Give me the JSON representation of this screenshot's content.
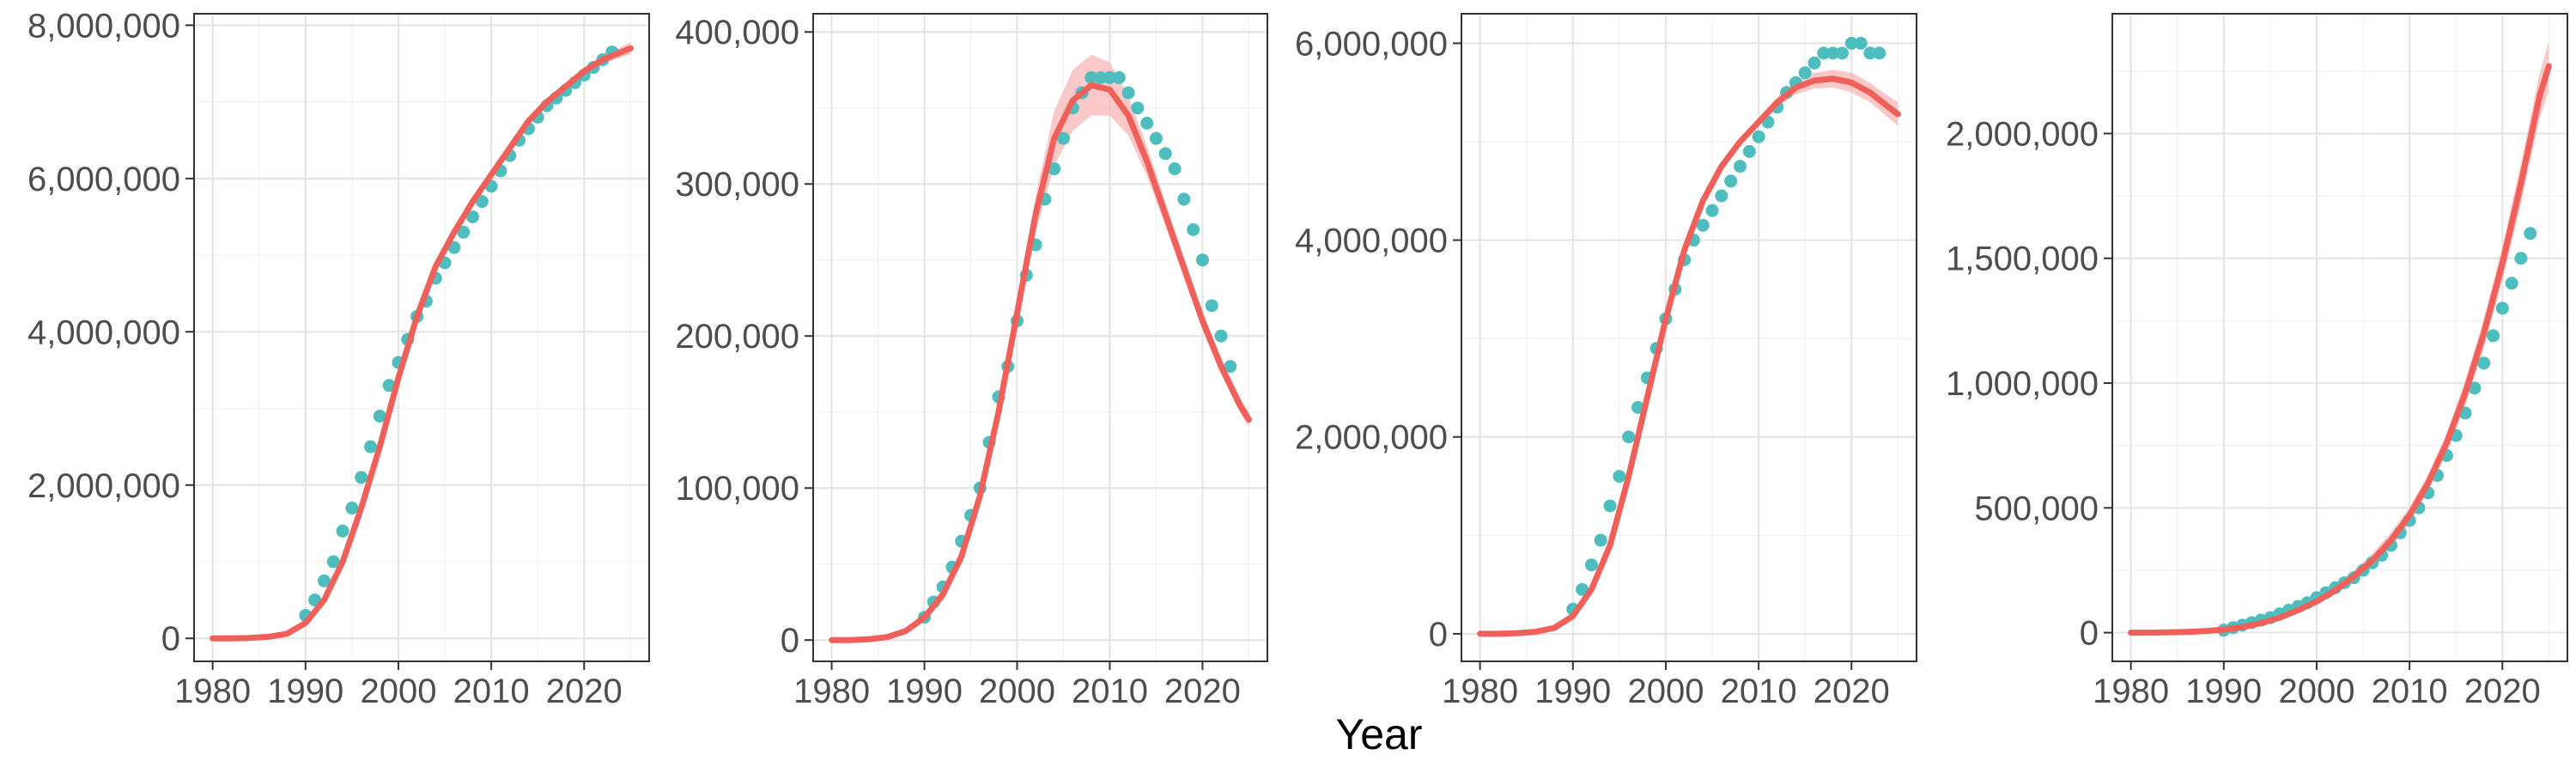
{
  "figure": {
    "xlabel": "Year",
    "colors": {
      "points": "#4dbdbd",
      "fit_line": "#f0605a",
      "ribbon": "#f7b5b5",
      "panel_border": "#333333",
      "grid_major": "#e5e5e5",
      "grid_minor": "#f2f2f2",
      "tick_text": "#4d4d4d"
    }
  },
  "chart_data": [
    {
      "type": "scatter",
      "title": "",
      "xlabel": "",
      "ylabel": "",
      "grid": true,
      "xlim": [
        1978,
        2027
      ],
      "ylim": [
        -300000,
        8150000
      ],
      "x_ticks": [
        1980,
        1990,
        2000,
        2010,
        2020
      ],
      "x_ticks_minor": [
        1985,
        1995,
        2005,
        2015,
        2025
      ],
      "y_ticks": [
        0,
        2000000,
        4000000,
        6000000,
        8000000
      ],
      "y_tick_labels": [
        "0",
        "2,000,000",
        "4,000,000",
        "6,000,000",
        "8,000,000"
      ],
      "y_ticks_minor": [
        1000000,
        3000000,
        5000000,
        7000000
      ],
      "series": [
        {
          "kind": "points",
          "x": [
            1990,
            1991,
            1992,
            1993,
            1994,
            1995,
            1996,
            1997,
            1998,
            1999,
            2000,
            2001,
            2002,
            2003,
            2004,
            2005,
            2006,
            2007,
            2008,
            2009,
            2010,
            2011,
            2012,
            2013,
            2014,
            2015,
            2016,
            2017,
            2018,
            2019,
            2020,
            2021,
            2022,
            2023
          ],
          "y": [
            300000,
            500000,
            750000,
            1000000,
            1400000,
            1700000,
            2100000,
            2500000,
            2900000,
            3300000,
            3600000,
            3900000,
            4200000,
            4400000,
            4700000,
            4900000,
            5100000,
            5300000,
            5500000,
            5700000,
            5900000,
            6100000,
            6300000,
            6500000,
            6650000,
            6800000,
            6950000,
            7050000,
            7150000,
            7250000,
            7350000,
            7450000,
            7550000,
            7650000
          ]
        },
        {
          "kind": "fit",
          "x": [
            1980,
            1982,
            1984,
            1986,
            1988,
            1990,
            1992,
            1994,
            1996,
            1998,
            2000,
            2002,
            2004,
            2006,
            2008,
            2010,
            2012,
            2014,
            2016,
            2018,
            2020,
            2022,
            2024,
            2025
          ],
          "y": [
            0,
            0,
            5000,
            20000,
            60000,
            200000,
            500000,
            1000000,
            1700000,
            2500000,
            3400000,
            4200000,
            4850000,
            5300000,
            5700000,
            6050000,
            6400000,
            6750000,
            7000000,
            7200000,
            7400000,
            7550000,
            7650000,
            7700000
          ],
          "lower": [
            0,
            0,
            3000,
            15000,
            50000,
            180000,
            470000,
            960000,
            1650000,
            2450000,
            3350000,
            4150000,
            4800000,
            5250000,
            5650000,
            6000000,
            6350000,
            6700000,
            6950000,
            7150000,
            7350000,
            7500000,
            7580000,
            7620000
          ],
          "upper": [
            0,
            0,
            7000,
            25000,
            70000,
            220000,
            530000,
            1040000,
            1750000,
            2550000,
            3450000,
            4250000,
            4900000,
            5350000,
            5750000,
            6100000,
            6450000,
            6800000,
            7050000,
            7250000,
            7450000,
            7600000,
            7720000,
            7780000
          ]
        }
      ]
    },
    {
      "type": "scatter",
      "title": "",
      "xlabel": "",
      "ylabel": "",
      "grid": true,
      "xlim": [
        1978,
        2027
      ],
      "ylim": [
        -14000,
        412000
      ],
      "x_ticks": [
        1980,
        1990,
        2000,
        2010,
        2020
      ],
      "x_ticks_minor": [
        1985,
        1995,
        2005,
        2015,
        2025
      ],
      "y_ticks": [
        0,
        100000,
        200000,
        300000,
        400000
      ],
      "y_tick_labels": [
        "0",
        "100,000",
        "200,000",
        "300,000",
        "400,000"
      ],
      "y_ticks_minor": [
        50000,
        150000,
        250000,
        350000
      ],
      "series": [
        {
          "kind": "points",
          "x": [
            1990,
            1991,
            1992,
            1993,
            1994,
            1995,
            1996,
            1997,
            1998,
            1999,
            2000,
            2001,
            2002,
            2003,
            2004,
            2005,
            2006,
            2007,
            2008,
            2009,
            2010,
            2011,
            2012,
            2013,
            2014,
            2015,
            2016,
            2017,
            2018,
            2019,
            2020,
            2021,
            2022,
            2023
          ],
          "y": [
            15000,
            25000,
            35000,
            48000,
            65000,
            82000,
            100000,
            130000,
            160000,
            180000,
            210000,
            240000,
            260000,
            290000,
            310000,
            330000,
            350000,
            360000,
            370000,
            370000,
            370000,
            370000,
            360000,
            350000,
            340000,
            330000,
            320000,
            310000,
            290000,
            270000,
            250000,
            220000,
            200000,
            180000
          ]
        },
        {
          "kind": "fit",
          "x": [
            1980,
            1982,
            1984,
            1986,
            1988,
            1990,
            1992,
            1994,
            1996,
            1998,
            2000,
            2002,
            2004,
            2006,
            2008,
            2010,
            2012,
            2014,
            2016,
            2018,
            2020,
            2022,
            2024,
            2025
          ],
          "y": [
            0,
            0,
            500,
            2000,
            6000,
            15000,
            30000,
            55000,
            95000,
            150000,
            215000,
            280000,
            330000,
            355000,
            365000,
            362000,
            345000,
            315000,
            280000,
            245000,
            210000,
            180000,
            155000,
            145000
          ],
          "lower": [
            0,
            0,
            200,
            1000,
            4000,
            12000,
            26000,
            50000,
            90000,
            145000,
            208000,
            268000,
            312000,
            335000,
            345000,
            345000,
            332000,
            305000,
            272000,
            238000,
            204000,
            175000,
            150000,
            140000
          ],
          "upper": [
            0,
            0,
            800,
            3000,
            8000,
            18000,
            34000,
            60000,
            100000,
            156000,
            222000,
            292000,
            348000,
            375000,
            385000,
            380000,
            358000,
            325000,
            288000,
            252000,
            216000,
            186000,
            160000,
            150000
          ]
        }
      ]
    },
    {
      "type": "scatter",
      "title": "",
      "xlabel": "",
      "ylabel": "",
      "grid": true,
      "xlim": [
        1978,
        2027
      ],
      "ylim": [
        -280000,
        6300000
      ],
      "x_ticks": [
        1980,
        1990,
        2000,
        2010,
        2020
      ],
      "x_ticks_minor": [
        1985,
        1995,
        2005,
        2015,
        2025
      ],
      "y_ticks": [
        0,
        2000000,
        4000000,
        6000000
      ],
      "y_tick_labels": [
        "0",
        "2,000,000",
        "4,000,000",
        "6,000,000"
      ],
      "y_ticks_minor": [
        1000000,
        3000000,
        5000000
      ],
      "series": [
        {
          "kind": "points",
          "x": [
            1990,
            1991,
            1992,
            1993,
            1994,
            1995,
            1996,
            1997,
            1998,
            1999,
            2000,
            2001,
            2002,
            2003,
            2004,
            2005,
            2006,
            2007,
            2008,
            2009,
            2010,
            2011,
            2012,
            2013,
            2014,
            2015,
            2016,
            2017,
            2018,
            2019,
            2020,
            2021,
            2022,
            2023
          ],
          "y": [
            250000,
            450000,
            700000,
            950000,
            1300000,
            1600000,
            2000000,
            2300000,
            2600000,
            2900000,
            3200000,
            3500000,
            3800000,
            4000000,
            4150000,
            4300000,
            4450000,
            4600000,
            4750000,
            4900000,
            5050000,
            5200000,
            5350000,
            5500000,
            5600000,
            5700000,
            5800000,
            5900000,
            5900000,
            5900000,
            6000000,
            6000000,
            5900000,
            5900000
          ]
        },
        {
          "kind": "fit",
          "x": [
            1980,
            1982,
            1984,
            1986,
            1988,
            1990,
            1992,
            1994,
            1996,
            1998,
            2000,
            2002,
            2004,
            2006,
            2008,
            2010,
            2012,
            2014,
            2016,
            2018,
            2020,
            2022,
            2024,
            2025
          ],
          "y": [
            0,
            0,
            5000,
            20000,
            60000,
            180000,
            450000,
            900000,
            1600000,
            2400000,
            3200000,
            3900000,
            4400000,
            4750000,
            5000000,
            5200000,
            5400000,
            5550000,
            5620000,
            5640000,
            5600000,
            5500000,
            5350000,
            5280000
          ],
          "lower": [
            0,
            0,
            3000,
            15000,
            50000,
            165000,
            425000,
            870000,
            1560000,
            2360000,
            3160000,
            3860000,
            4360000,
            4710000,
            4960000,
            5160000,
            5350000,
            5480000,
            5540000,
            5550000,
            5500000,
            5400000,
            5240000,
            5160000
          ],
          "upper": [
            0,
            0,
            7000,
            25000,
            70000,
            195000,
            475000,
            930000,
            1640000,
            2440000,
            3240000,
            3940000,
            4440000,
            4790000,
            5040000,
            5240000,
            5450000,
            5620000,
            5700000,
            5730000,
            5700000,
            5600000,
            5460000,
            5400000
          ]
        }
      ]
    },
    {
      "type": "scatter",
      "title": "",
      "xlabel": "",
      "ylabel": "",
      "grid": true,
      "xlim": [
        1978,
        2027
      ],
      "ylim": [
        -115000,
        2480000
      ],
      "x_ticks": [
        1980,
        1990,
        2000,
        2010,
        2020
      ],
      "x_ticks_minor": [
        1985,
        1995,
        2005,
        2015,
        2025
      ],
      "y_ticks": [
        0,
        500000,
        1000000,
        1500000,
        2000000
      ],
      "y_tick_labels": [
        "0",
        "500,000",
        "1,000,000",
        "1,500,000",
        "2,000,000"
      ],
      "y_ticks_minor": [
        250000,
        750000,
        1250000,
        1750000,
        2250000
      ],
      "series": [
        {
          "kind": "points",
          "x": [
            1990,
            1991,
            1992,
            1993,
            1994,
            1995,
            1996,
            1997,
            1998,
            1999,
            2000,
            2001,
            2002,
            2003,
            2004,
            2005,
            2006,
            2007,
            2008,
            2009,
            2010,
            2011,
            2012,
            2013,
            2014,
            2015,
            2016,
            2017,
            2018,
            2019,
            2020,
            2021,
            2022,
            2023
          ],
          "y": [
            10000,
            20000,
            30000,
            40000,
            50000,
            60000,
            75000,
            90000,
            105000,
            120000,
            140000,
            160000,
            180000,
            200000,
            220000,
            250000,
            280000,
            310000,
            350000,
            400000,
            450000,
            500000,
            560000,
            630000,
            710000,
            790000,
            880000,
            980000,
            1080000,
            1190000,
            1300000,
            1400000,
            1500000,
            1600000
          ]
        },
        {
          "kind": "fit",
          "x": [
            1980,
            1982,
            1984,
            1986,
            1988,
            1990,
            1992,
            1994,
            1996,
            1998,
            2000,
            2002,
            2004,
            2006,
            2008,
            2010,
            2012,
            2014,
            2016,
            2018,
            2020,
            2022,
            2024,
            2025
          ],
          "y": [
            0,
            0,
            1000,
            3000,
            6000,
            12000,
            22000,
            38000,
            60000,
            90000,
            125000,
            170000,
            225000,
            290000,
            370000,
            470000,
            600000,
            760000,
            960000,
            1200000,
            1480000,
            1800000,
            2150000,
            2270000
          ],
          "lower": [
            0,
            0,
            500,
            2000,
            4500,
            9000,
            18000,
            32000,
            52000,
            80000,
            112000,
            152000,
            202000,
            262000,
            338000,
            438000,
            565000,
            720000,
            910000,
            1140000,
            1410000,
            1720000,
            2060000,
            2170000
          ],
          "upper": [
            0,
            0,
            1500,
            4000,
            7500,
            15000,
            26000,
            44000,
            68000,
            100000,
            138000,
            188000,
            248000,
            318000,
            402000,
            502000,
            635000,
            800000,
            1010000,
            1260000,
            1550000,
            1880000,
            2240000,
            2370000
          ]
        }
      ]
    }
  ]
}
